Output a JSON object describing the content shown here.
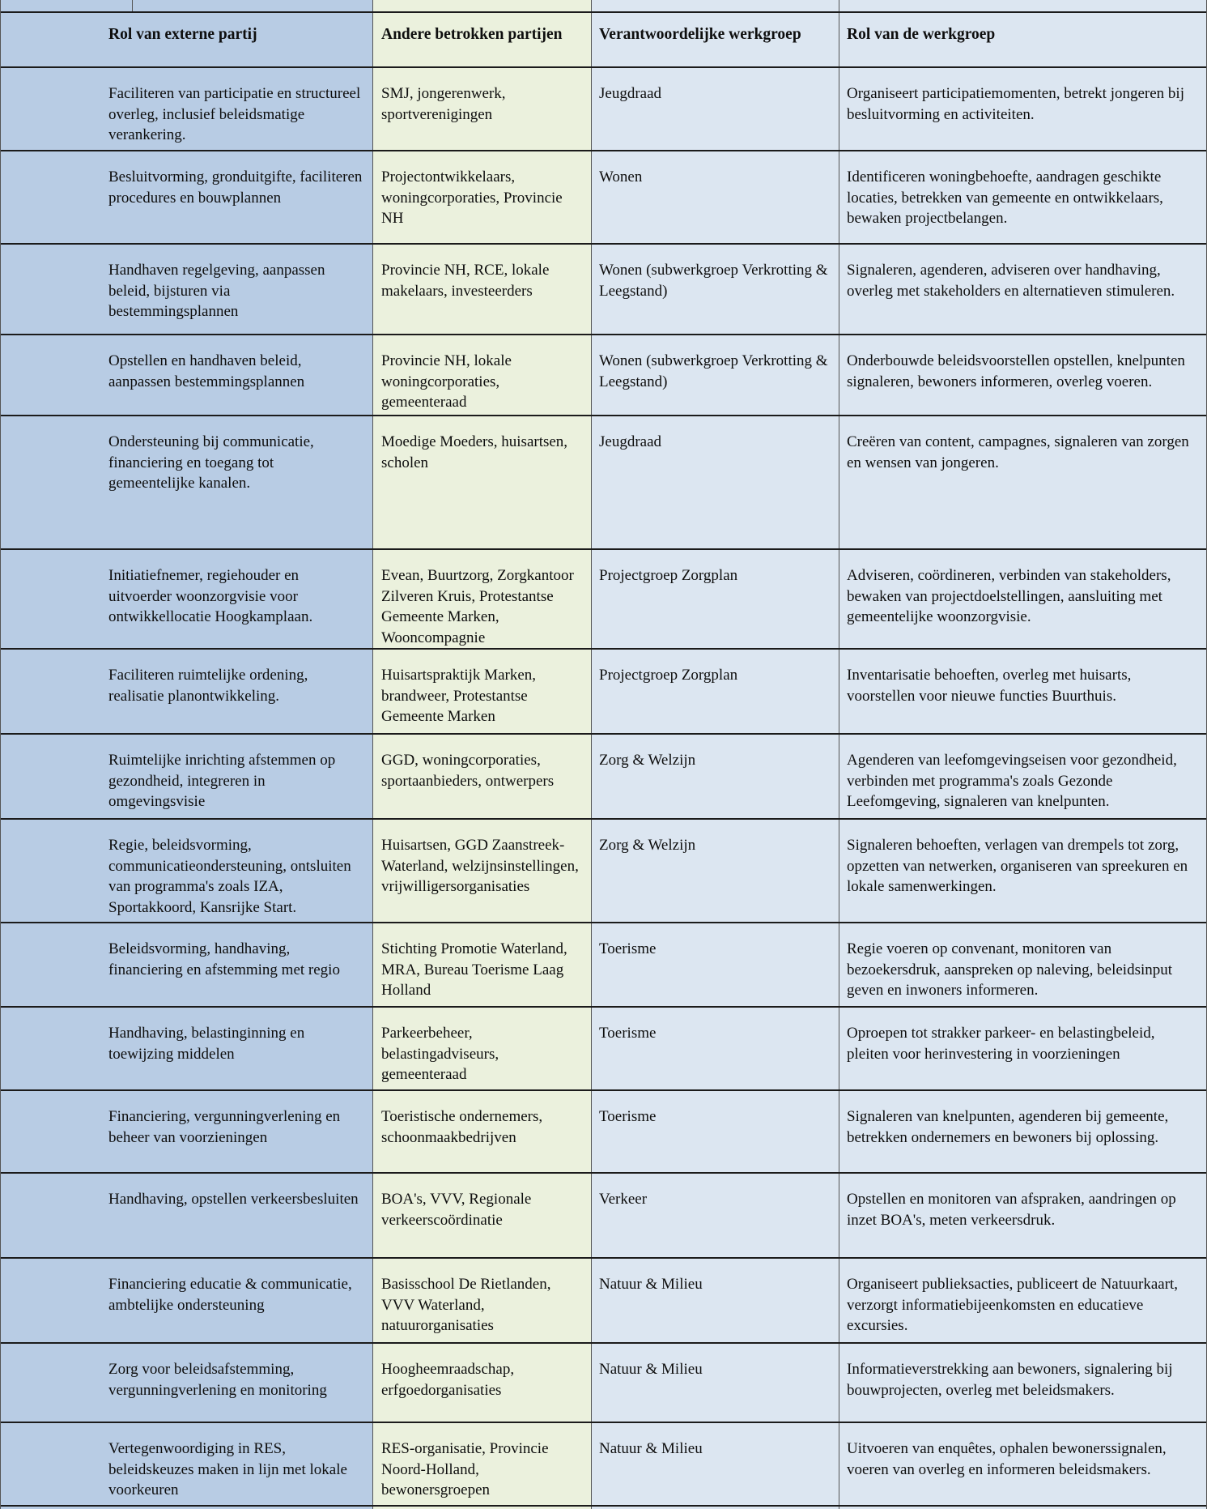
{
  "table": {
    "headers": [
      "Rol van externe partij",
      "Andere betrokken partijen",
      "Verantwoordelijke werkgroep",
      "Rol van de werkgroep"
    ],
    "colors": {
      "col1_bg": "#b8cce4",
      "col2_bg": "#ebf1dd",
      "col3_bg": "#dce6f1",
      "border_dark": "#1b1b1b",
      "border_gray": "#555555"
    },
    "rows": [
      {
        "external_role": "Faciliteren van participatie en structureel overleg, inclusief beleidsmatige verankering.",
        "other_parties": "SMJ, jongerenwerk, sportverenigingen",
        "workgroup": "Jeugdraad",
        "workgroup_role": "Organiseert participatiemomenten, betrekt jongeren bij besluitvorming en activiteiten."
      },
      {
        "external_role": "Besluitvorming, gronduitgifte, faciliteren procedures en bouwplannen",
        "other_parties": "Projectontwikkelaars, woningcorporaties, Provincie NH",
        "workgroup": "Wonen",
        "workgroup_role": "Identificeren woningbehoefte, aandragen geschikte locaties, betrekken van gemeente en ontwikkelaars, bewaken projectbelangen."
      },
      {
        "external_role": "Handhaven regelgeving, aanpassen beleid, bijsturen via bestemmingsplannen",
        "other_parties": "Provincie NH, RCE, lokale makelaars, investeerders",
        "workgroup": "Wonen (subwerkgroep Verkrotting & Leegstand)",
        "workgroup_role": "Signaleren, agenderen, adviseren over handhaving, overleg met stakeholders en alternatieven stimuleren."
      },
      {
        "external_role": "Opstellen en handhaven beleid, aanpassen bestemmingsplannen",
        "other_parties": "Provincie NH, lokale woningcorporaties, gemeenteraad",
        "workgroup": "Wonen (subwerkgroep Verkrotting & Leegstand)",
        "workgroup_role": "Onderbouwde beleidsvoorstellen opstellen, knelpunten signaleren, bewoners informeren, overleg voeren."
      },
      {
        "external_role": "Ondersteuning bij communicatie, financiering en toegang tot gemeentelijke kanalen.",
        "other_parties": "Moedige Moeders, huisartsen, scholen",
        "workgroup": "Jeugdraad",
        "workgroup_role": "Creëren van content, campagnes, signaleren van zorgen en wensen van jongeren."
      },
      {
        "external_role": "Initiatiefnemer, regiehouder en uitvoerder woonzorgvisie voor ontwikkellocatie Hoogkamplaan.",
        "other_parties": "Evean, Buurtzorg, Zorgkantoor Zilveren Kruis, Protestantse Gemeente Marken, Wooncompagnie",
        "workgroup": "Projectgroep Zorgplan",
        "workgroup_role": "Adviseren, coördineren, verbinden van stakeholders, bewaken van projectdoelstellingen, aansluiting met gemeentelijke woonzorgvisie."
      },
      {
        "external_role": "Faciliteren ruimtelijke ordening, realisatie planontwikkeling.",
        "other_parties": "Huisartspraktijk Marken, brandweer, Protestantse Gemeente Marken",
        "workgroup": "Projectgroep Zorgplan",
        "workgroup_role": "Inventarisatie behoeften, overleg met huisarts, voorstellen voor nieuwe functies Buurthuis."
      },
      {
        "external_role": "Ruimtelijke inrichting afstemmen op gezondheid, integreren in omgevingsvisie",
        "other_parties": "GGD, woningcorporaties, sportaanbieders, ontwerpers",
        "workgroup": "Zorg & Welzijn",
        "workgroup_role": "Agenderen van leefomgevingseisen voor gezondheid, verbinden met programma's zoals Gezonde Leefomgeving, signaleren van knelpunten."
      },
      {
        "external_role": "Regie, beleidsvorming, communicatieondersteuning, ontsluiten van programma's zoals IZA, Sportakkoord, Kansrijke Start.",
        "other_parties": "Huisartsen, GGD Zaanstreek-Waterland, welzijnsinstellingen, vrijwilligersorganisaties",
        "workgroup": "Zorg & Welzijn",
        "workgroup_role": "Signaleren behoeften, verlagen van drempels tot zorg, opzetten van netwerken, organiseren van spreekuren en lokale samenwerkingen."
      },
      {
        "external_role": "Beleidsvorming, handhaving, financiering en afstemming met regio",
        "other_parties": "Stichting Promotie Waterland, MRA, Bureau Toerisme Laag Holland",
        "workgroup": "Toerisme",
        "workgroup_role": "Regie voeren op convenant, monitoren van bezoekersdruk, aanspreken op naleving, beleidsinput geven en inwoners informeren."
      },
      {
        "external_role": "Handhaving, belastinginning en toewijzing middelen",
        "other_parties": "Parkeerbeheer, belastingadviseurs, gemeenteraad",
        "workgroup": "Toerisme",
        "workgroup_role": "Oproepen tot strakker parkeer- en belastingbeleid, pleiten voor herinvestering in voorzieningen"
      },
      {
        "external_role": "Financiering, vergunningverlening en beheer van voorzieningen",
        "other_parties": "Toeristische ondernemers, schoonmaakbedrijven",
        "workgroup": "Toerisme",
        "workgroup_role": "Signaleren van knelpunten, agenderen bij gemeente, betrekken ondernemers en bewoners bij oplossing."
      },
      {
        "external_role": "Handhaving, opstellen verkeersbesluiten",
        "other_parties": "BOA's, VVV, Regionale verkeerscoördinatie",
        "workgroup": "Verkeer",
        "workgroup_role": "Opstellen en monitoren van afspraken, aandringen op inzet BOA's, meten verkeersdruk."
      },
      {
        "external_role": "Financiering educatie & communicatie, ambtelijke ondersteuning",
        "other_parties": "Basisschool De Rietlanden, VVV Waterland, natuurorganisaties",
        "workgroup": "Natuur & Milieu",
        "workgroup_role": "Organiseert publieksacties, publiceert de Natuurkaart, verzorgt informatiebijeenkomsten en educatieve excursies."
      },
      {
        "external_role": "Zorg voor beleidsafstemming, vergunningverlening en monitoring",
        "other_parties": "Hoogheemraadschap, erfgoedorganisaties",
        "workgroup": "Natuur & Milieu",
        "workgroup_role": "Informatieverstrekking aan bewoners, signalering bij bouwprojecten, overleg met beleidsmakers."
      },
      {
        "external_role": "Vertegenwoordiging in RES, beleidskeuzes maken in lijn met lokale voorkeuren",
        "other_parties": "RES-organisatie, Provincie Noord-Holland, bewonersgroepen",
        "workgroup": "Natuur & Milieu",
        "workgroup_role": "Uitvoeren van enquêtes, ophalen bewonerssignalen, voeren van overleg en informeren beleidsmakers."
      }
    ]
  }
}
